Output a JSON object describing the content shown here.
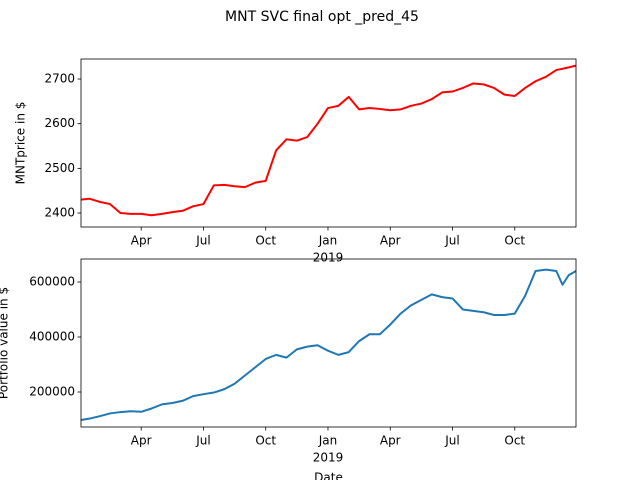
{
  "title": "MNT SVC final opt _pred_45",
  "chart_data": [
    {
      "type": "line",
      "ylabel": "MNTprice in $",
      "x": [
        0.1,
        0.5,
        1,
        1.5,
        2,
        2.5,
        3,
        3.5,
        4,
        4.5,
        5,
        5.5,
        6,
        6.5,
        7,
        7.5,
        8,
        8.5,
        9,
        9.5,
        10,
        10.5,
        11,
        11.5,
        12,
        12.5,
        13,
        13.5,
        14,
        14.5,
        15,
        15.5,
        16,
        16.5,
        17,
        17.5,
        18,
        18.5,
        19,
        19.5,
        20,
        20.5,
        21,
        21.5,
        22,
        22.5,
        23,
        23.5,
        23.95
      ],
      "series": [
        {
          "color": "red",
          "values": [
            2430,
            2432,
            2425,
            2420,
            2400,
            2398,
            2398,
            2395,
            2398,
            2402,
            2405,
            2415,
            2420,
            2462,
            2463,
            2460,
            2458,
            2468,
            2472,
            2540,
            2565,
            2562,
            2570,
            2600,
            2635,
            2640,
            2660,
            2632,
            2635,
            2633,
            2630,
            2632,
            2640,
            2645,
            2655,
            2670,
            2672,
            2680,
            2690,
            2688,
            2680,
            2665,
            2662,
            2680,
            2695,
            2705,
            2720,
            2725,
            2730
          ]
        }
      ],
      "xlim": [
        0.1,
        23.95
      ],
      "ylim": [
        2368.7,
        2744.8
      ],
      "xticks": [
        {
          "value": 3,
          "label": "Apr"
        },
        {
          "value": 6,
          "label": "Jul"
        },
        {
          "value": 9,
          "label": "Oct"
        },
        {
          "value": 12,
          "label": "Jan"
        },
        {
          "value": 15,
          "label": "Apr"
        },
        {
          "value": 18,
          "label": "Jul"
        },
        {
          "value": 21,
          "label": "Oct"
        }
      ],
      "year_ticks": [
        {
          "value": 12,
          "label": "2019"
        }
      ],
      "yticks": [
        2400,
        2500,
        2600,
        2700
      ]
    },
    {
      "type": "line",
      "ylabel": "Portfolio value in $",
      "xlabel": "Date",
      "x": [
        0.1,
        0.5,
        1,
        1.5,
        2,
        2.5,
        3,
        3.5,
        4,
        4.5,
        5,
        5.5,
        6,
        6.5,
        7,
        7.5,
        8,
        8.5,
        9,
        9.5,
        10,
        10.5,
        11,
        11.5,
        12,
        12.5,
        13,
        13.5,
        14,
        14.5,
        15,
        15.5,
        16,
        16.5,
        17,
        17.5,
        18,
        18.5,
        19,
        19.5,
        20,
        20.5,
        21,
        21.5,
        22,
        22.5,
        23,
        23.3,
        23.6,
        23.95
      ],
      "series": [
        {
          "color": "#1f77b4",
          "values": [
            98000,
            103000,
            112000,
            122000,
            127000,
            130000,
            128000,
            140000,
            155000,
            160000,
            168000,
            185000,
            192000,
            198000,
            210000,
            230000,
            260000,
            290000,
            320000,
            335000,
            325000,
            355000,
            365000,
            370000,
            350000,
            335000,
            345000,
            385000,
            410000,
            410000,
            445000,
            485000,
            515000,
            535000,
            555000,
            545000,
            540000,
            500000,
            495000,
            490000,
            480000,
            480000,
            485000,
            550000,
            640000,
            645000,
            640000,
            590000,
            625000,
            640000
          ]
        }
      ],
      "xlim": [
        0.1,
        23.95
      ],
      "ylim": [
        72700,
        683600
      ],
      "xticks": [
        {
          "value": 3,
          "label": "Apr"
        },
        {
          "value": 6,
          "label": "Jul"
        },
        {
          "value": 9,
          "label": "Oct"
        },
        {
          "value": 12,
          "label": "Jan"
        },
        {
          "value": 15,
          "label": "Apr"
        },
        {
          "value": 18,
          "label": "Jul"
        },
        {
          "value": 21,
          "label": "Oct"
        }
      ],
      "year_ticks": [
        {
          "value": 12,
          "label": "2019"
        }
      ],
      "yticks": [
        200000,
        400000,
        600000
      ]
    }
  ]
}
